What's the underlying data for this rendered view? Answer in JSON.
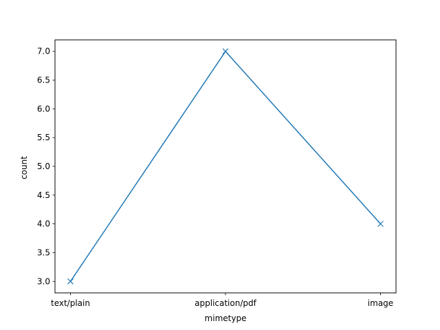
{
  "chart_data": {
    "type": "line",
    "categories": [
      "text/plain",
      "application/pdf",
      "image"
    ],
    "series": [
      {
        "values": [
          3,
          7,
          4
        ],
        "color": "#1f77b4",
        "marker": "x"
      }
    ],
    "xlabel": "mimetype",
    "ylabel": "count",
    "ylim": [
      2.8,
      7.2
    ],
    "yticks": [
      3.0,
      3.5,
      4.0,
      4.5,
      5.0,
      5.5,
      6.0,
      6.5,
      7.0
    ],
    "ytick_labels": [
      "3.0",
      "3.5",
      "4.0",
      "4.5",
      "5.0",
      "5.5",
      "6.0",
      "6.5",
      "7.0"
    ],
    "grid": false,
    "legend": false
  }
}
